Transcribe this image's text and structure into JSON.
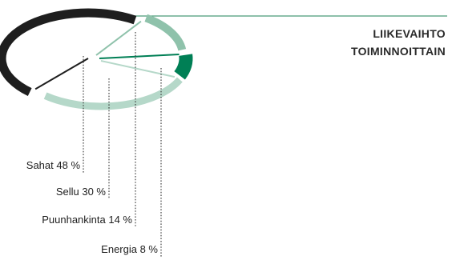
{
  "title_lines": [
    "LIIKEVAIHTO",
    "TOIMINNOITTAIN"
  ],
  "chart_data": {
    "type": "pie",
    "style": "exploded-ring",
    "title": "LIIKEVAIHTO TOIMINNOITTAIN",
    "slices": [
      {
        "name": "Sahat",
        "value": 48,
        "unit": "%",
        "label": "Sahat 48 %",
        "color": "#1e1e1e"
      },
      {
        "name": "Sellu",
        "value": 30,
        "unit": "%",
        "label": "Sellu 30 %",
        "color": "#b5d8c9"
      },
      {
        "name": "Puunhankinta",
        "value": 14,
        "unit": "%",
        "label": "Puunhankinta 14 %",
        "color": "#8fc2ab"
      },
      {
        "name": "Energia",
        "value": 8,
        "unit": "%",
        "label": "Energia 8 %",
        "color": "#007f55"
      }
    ],
    "legend": "labels-bottom-left-with-dotted-leaders",
    "accent_line_color": "#4a9b78"
  }
}
